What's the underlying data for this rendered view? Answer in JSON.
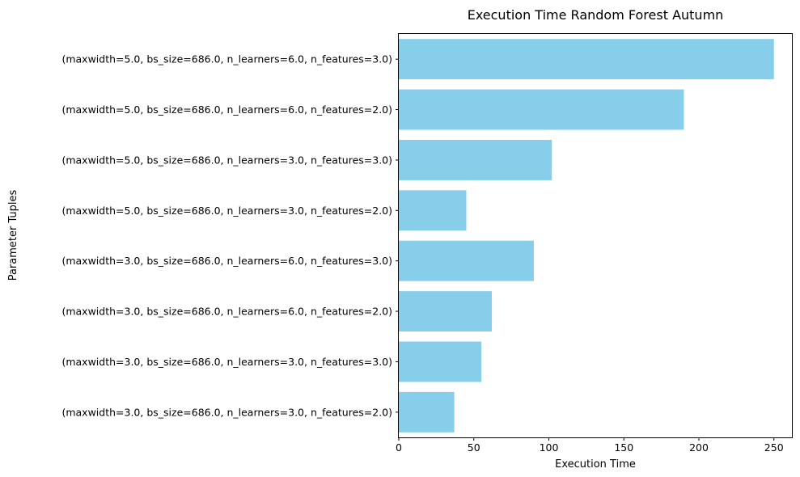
{
  "chart_data": {
    "type": "bar",
    "orientation": "horizontal",
    "title": "Execution Time Random Forest Autumn",
    "xlabel": "Execution Time",
    "ylabel": "Parameter Tuples",
    "xlim": [
      0,
      262
    ],
    "xticks": [
      0,
      50,
      100,
      150,
      200,
      250
    ],
    "grid": false,
    "bar_color": "#87CEEB",
    "categories": [
      "(maxwidth=3.0, bs_size=686.0, n_learners=3.0, n_features=2.0)",
      "(maxwidth=3.0, bs_size=686.0, n_learners=3.0, n_features=3.0)",
      "(maxwidth=3.0, bs_size=686.0, n_learners=6.0, n_features=2.0)",
      "(maxwidth=3.0, bs_size=686.0, n_learners=6.0, n_features=3.0)",
      "(maxwidth=5.0, bs_size=686.0, n_learners=3.0, n_features=2.0)",
      "(maxwidth=5.0, bs_size=686.0, n_learners=3.0, n_features=3.0)",
      "(maxwidth=5.0, bs_size=686.0, n_learners=6.0, n_features=2.0)",
      "(maxwidth=5.0, bs_size=686.0, n_learners=6.0, n_features=3.0)"
    ],
    "values": [
      37,
      55,
      62,
      90,
      45,
      102,
      190,
      250
    ]
  }
}
